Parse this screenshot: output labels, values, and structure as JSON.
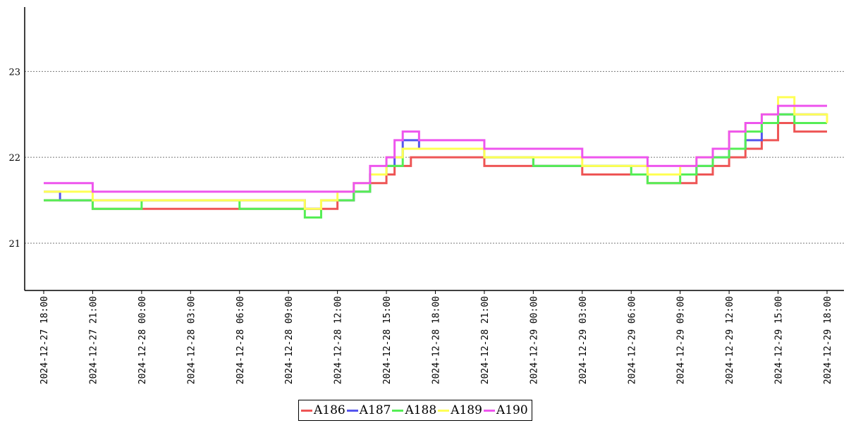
{
  "chart_data": {
    "type": "line",
    "title": "",
    "xlabel": "",
    "ylabel": "",
    "ylim": [
      20.45,
      23.75
    ],
    "yticks": [
      "21",
      "22",
      "23"
    ],
    "grid": "horizontal dotted",
    "legend_position": "bottom-center",
    "x_range": [
      "2024-12-27 18:00",
      "2024-12-29 18:00"
    ],
    "x_ticks": [
      "2024-12-27 18:00",
      "2024-12-27 21:00",
      "2024-12-28 00:00",
      "2024-12-28 03:00",
      "2024-12-28 06:00",
      "2024-12-28 09:00",
      "2024-12-28 12:00",
      "2024-12-28 15:00",
      "2024-12-28 18:00",
      "2024-12-28 21:00",
      "2024-12-29 00:00",
      "2024-12-29 03:00",
      "2024-12-29 06:00",
      "2024-12-29 09:00",
      "2024-12-29 12:00",
      "2024-12-29 15:00",
      "2024-12-29 18:00"
    ],
    "series": [
      {
        "name": "A186",
        "color": "#ee5555",
        "points": [
          [
            "2024-12-27 18:00",
            21.5
          ],
          [
            "2024-12-27 21:00",
            21.4
          ],
          [
            "2024-12-28 00:00",
            21.4
          ],
          [
            "2024-12-28 03:00",
            21.4
          ],
          [
            "2024-12-28 06:00",
            21.4
          ],
          [
            "2024-12-28 09:00",
            21.4
          ],
          [
            "2024-12-28 12:00",
            21.5
          ],
          [
            "2024-12-28 13:00",
            21.6
          ],
          [
            "2024-12-28 14:00",
            21.7
          ],
          [
            "2024-12-28 15:00",
            21.8
          ],
          [
            "2024-12-28 15:30",
            21.9
          ],
          [
            "2024-12-28 16:30",
            22.0
          ],
          [
            "2024-12-28 18:00",
            22.0
          ],
          [
            "2024-12-28 21:00",
            21.9
          ],
          [
            "2024-12-29 00:00",
            21.9
          ],
          [
            "2024-12-29 03:00",
            21.8
          ],
          [
            "2024-12-29 06:00",
            21.8
          ],
          [
            "2024-12-29 07:00",
            21.7
          ],
          [
            "2024-12-29 09:00",
            21.7
          ],
          [
            "2024-12-29 10:00",
            21.8
          ],
          [
            "2024-12-29 11:00",
            21.9
          ],
          [
            "2024-12-29 12:00",
            22.0
          ],
          [
            "2024-12-29 13:00",
            22.1
          ],
          [
            "2024-12-29 14:00",
            22.2
          ],
          [
            "2024-12-29 15:00",
            22.4
          ],
          [
            "2024-12-29 16:00",
            22.3
          ],
          [
            "2024-12-29 18:00",
            22.3
          ]
        ]
      },
      {
        "name": "A187",
        "color": "#5555ee",
        "points": [
          [
            "2024-12-27 18:00",
            21.6
          ],
          [
            "2024-12-27 19:00",
            21.5
          ],
          [
            "2024-12-27 21:00",
            21.5
          ],
          [
            "2024-12-28 00:00",
            21.5
          ],
          [
            "2024-12-28 03:00",
            21.5
          ],
          [
            "2024-12-28 06:00",
            21.5
          ],
          [
            "2024-12-28 09:00",
            21.5
          ],
          [
            "2024-12-28 10:00",
            21.4
          ],
          [
            "2024-12-28 11:00",
            21.5
          ],
          [
            "2024-12-28 12:00",
            21.5
          ],
          [
            "2024-12-28 13:00",
            21.6
          ],
          [
            "2024-12-28 14:00",
            21.8
          ],
          [
            "2024-12-28 15:00",
            21.9
          ],
          [
            "2024-12-28 15:30",
            22.0
          ],
          [
            "2024-12-28 16:00",
            22.2
          ],
          [
            "2024-12-28 17:00",
            22.1
          ],
          [
            "2024-12-28 18:00",
            22.1
          ],
          [
            "2024-12-28 21:00",
            22.0
          ],
          [
            "2024-12-29 00:00",
            21.9
          ],
          [
            "2024-12-29 03:00",
            21.9
          ],
          [
            "2024-12-29 06:00",
            21.9
          ],
          [
            "2024-12-29 07:00",
            21.8
          ],
          [
            "2024-12-29 09:00",
            21.8
          ],
          [
            "2024-12-29 10:00",
            21.9
          ],
          [
            "2024-12-29 11:00",
            22.0
          ],
          [
            "2024-12-29 12:00",
            22.1
          ],
          [
            "2024-12-29 13:00",
            22.2
          ],
          [
            "2024-12-29 14:00",
            22.4
          ],
          [
            "2024-12-29 15:00",
            22.5
          ],
          [
            "2024-12-29 16:00",
            22.5
          ],
          [
            "2024-12-29 18:00",
            22.5
          ]
        ]
      },
      {
        "name": "A188",
        "color": "#55ee55",
        "points": [
          [
            "2024-12-27 18:00",
            21.5
          ],
          [
            "2024-12-27 21:00",
            21.4
          ],
          [
            "2024-12-28 00:00",
            21.5
          ],
          [
            "2024-12-28 03:00",
            21.5
          ],
          [
            "2024-12-28 06:00",
            21.4
          ],
          [
            "2024-12-28 09:00",
            21.4
          ],
          [
            "2024-12-28 10:00",
            21.3
          ],
          [
            "2024-12-28 11:00",
            21.5
          ],
          [
            "2024-12-28 12:00",
            21.5
          ],
          [
            "2024-12-28 13:00",
            21.6
          ],
          [
            "2024-12-28 14:00",
            21.8
          ],
          [
            "2024-12-28 15:00",
            21.9
          ],
          [
            "2024-12-28 16:00",
            22.1
          ],
          [
            "2024-12-28 18:00",
            22.1
          ],
          [
            "2024-12-28 21:00",
            22.0
          ],
          [
            "2024-12-29 00:00",
            21.9
          ],
          [
            "2024-12-29 03:00",
            21.9
          ],
          [
            "2024-12-29 06:00",
            21.8
          ],
          [
            "2024-12-29 07:00",
            21.7
          ],
          [
            "2024-12-29 09:00",
            21.8
          ],
          [
            "2024-12-29 10:00",
            21.9
          ],
          [
            "2024-12-29 11:00",
            22.0
          ],
          [
            "2024-12-29 12:00",
            22.1
          ],
          [
            "2024-12-29 13:00",
            22.3
          ],
          [
            "2024-12-29 14:00",
            22.4
          ],
          [
            "2024-12-29 15:00",
            22.5
          ],
          [
            "2024-12-29 16:00",
            22.4
          ],
          [
            "2024-12-29 18:00",
            22.4
          ]
        ]
      },
      {
        "name": "A189",
        "color": "#ffff55",
        "points": [
          [
            "2024-12-27 18:00",
            21.6
          ],
          [
            "2024-12-27 21:00",
            21.5
          ],
          [
            "2024-12-28 00:00",
            21.5
          ],
          [
            "2024-12-28 03:00",
            21.5
          ],
          [
            "2024-12-28 06:00",
            21.5
          ],
          [
            "2024-12-28 09:00",
            21.5
          ],
          [
            "2024-12-28 10:00",
            21.4
          ],
          [
            "2024-12-28 11:00",
            21.5
          ],
          [
            "2024-12-28 12:00",
            21.6
          ],
          [
            "2024-12-28 13:00",
            21.7
          ],
          [
            "2024-12-28 14:00",
            21.8
          ],
          [
            "2024-12-28 15:00",
            22.0
          ],
          [
            "2024-12-28 16:00",
            22.1
          ],
          [
            "2024-12-28 18:00",
            22.1
          ],
          [
            "2024-12-28 21:00",
            22.0
          ],
          [
            "2024-12-29 00:00",
            22.0
          ],
          [
            "2024-12-29 03:00",
            21.9
          ],
          [
            "2024-12-29 06:00",
            21.9
          ],
          [
            "2024-12-29 07:00",
            21.8
          ],
          [
            "2024-12-29 09:00",
            21.9
          ],
          [
            "2024-12-29 10:00",
            22.0
          ],
          [
            "2024-12-29 11:00",
            22.1
          ],
          [
            "2024-12-29 12:00",
            22.3
          ],
          [
            "2024-12-29 13:00",
            22.4
          ],
          [
            "2024-12-29 14:00",
            22.5
          ],
          [
            "2024-12-29 15:00",
            22.7
          ],
          [
            "2024-12-29 16:00",
            22.5
          ],
          [
            "2024-12-29 18:00",
            22.4
          ]
        ]
      },
      {
        "name": "A190",
        "color": "#ee55ee",
        "points": [
          [
            "2024-12-27 18:00",
            21.7
          ],
          [
            "2024-12-27 21:00",
            21.6
          ],
          [
            "2024-12-28 00:00",
            21.6
          ],
          [
            "2024-12-28 03:00",
            21.6
          ],
          [
            "2024-12-28 06:00",
            21.6
          ],
          [
            "2024-12-28 09:00",
            21.6
          ],
          [
            "2024-12-28 12:00",
            21.6
          ],
          [
            "2024-12-28 13:00",
            21.7
          ],
          [
            "2024-12-28 14:00",
            21.9
          ],
          [
            "2024-12-28 15:00",
            22.0
          ],
          [
            "2024-12-28 15:30",
            22.2
          ],
          [
            "2024-12-28 16:00",
            22.3
          ],
          [
            "2024-12-28 17:00",
            22.2
          ],
          [
            "2024-12-28 18:00",
            22.2
          ],
          [
            "2024-12-28 21:00",
            22.1
          ],
          [
            "2024-12-29 00:00",
            22.1
          ],
          [
            "2024-12-29 03:00",
            22.0
          ],
          [
            "2024-12-29 06:00",
            22.0
          ],
          [
            "2024-12-29 07:00",
            21.9
          ],
          [
            "2024-12-29 09:00",
            21.9
          ],
          [
            "2024-12-29 10:00",
            22.0
          ],
          [
            "2024-12-29 11:00",
            22.1
          ],
          [
            "2024-12-29 12:00",
            22.3
          ],
          [
            "2024-12-29 13:00",
            22.4
          ],
          [
            "2024-12-29 14:00",
            22.5
          ],
          [
            "2024-12-29 15:00",
            22.6
          ],
          [
            "2024-12-29 16:00",
            22.6
          ],
          [
            "2024-12-29 18:00",
            22.6
          ]
        ]
      }
    ]
  }
}
